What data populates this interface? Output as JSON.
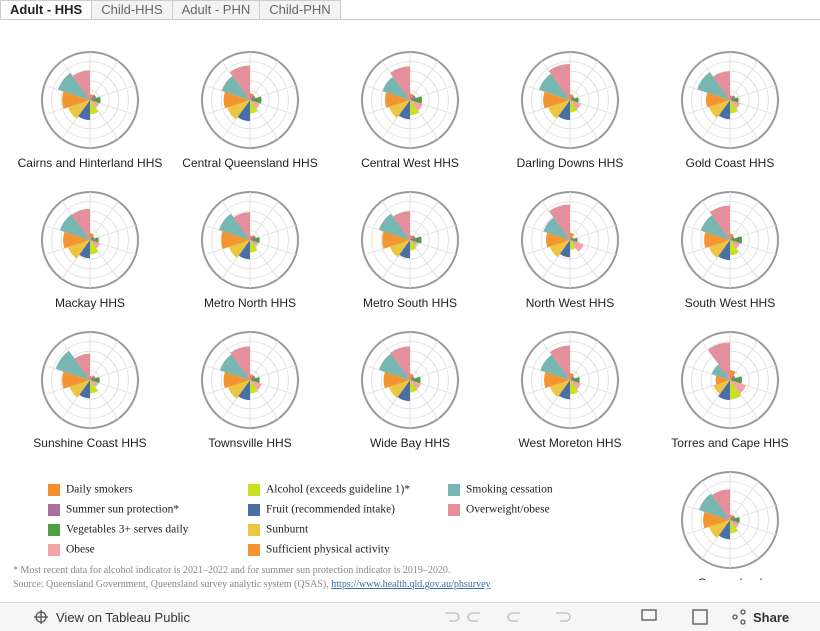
{
  "tabs": [
    "Adult - HHS",
    "Child-HHS",
    "Adult - PHN",
    "Child-PHN"
  ],
  "chart_data": {
    "type": "polar-area",
    "rlim": [
      0,
      100
    ],
    "rticks": [
      20,
      40,
      60,
      80,
      100
    ],
    "series": [
      {
        "name": "Daily smokers",
        "color": "#f28e2b"
      },
      {
        "name": "Summer sun protection*",
        "color": "#a871a0"
      },
      {
        "name": "Vegetables 3+ serves daily",
        "color": "#4f9e46"
      },
      {
        "name": "Obese",
        "color": "#f4a3a8"
      },
      {
        "name": "Alcohol (exceeds guideline 1)*",
        "color": "#c7e020"
      },
      {
        "name": "Fruit (recommended intake)",
        "color": "#4a6fa5"
      },
      {
        "name": "Sunburnt",
        "color": "#eec443"
      },
      {
        "name": "Sufficient physical activity",
        "color": "#f39530"
      },
      {
        "name": "Smoking cessation",
        "color": "#78b6b1"
      },
      {
        "name": "Overweight/obese",
        "color": "#e3909a"
      }
    ],
    "panels": [
      {
        "title": "Cairns and Hinterland HHS",
        "values": [
          12,
          14,
          22,
          20,
          30,
          42,
          48,
          58,
          70,
          62
        ]
      },
      {
        "title": "Central Queensland HHS",
        "values": [
          14,
          12,
          24,
          22,
          28,
          44,
          50,
          55,
          62,
          72
        ]
      },
      {
        "title": "Central West HHS",
        "values": [
          13,
          13,
          25,
          28,
          32,
          40,
          46,
          52,
          60,
          70
        ]
      },
      {
        "title": "Darling Downs HHS",
        "values": [
          12,
          10,
          18,
          24,
          26,
          42,
          48,
          56,
          68,
          75
        ]
      },
      {
        "title": "Gold Coast HHS",
        "values": [
          10,
          12,
          18,
          22,
          28,
          40,
          46,
          50,
          72,
          60
        ]
      },
      {
        "title": "Mackay HHS",
        "values": [
          14,
          10,
          18,
          22,
          30,
          38,
          48,
          56,
          66,
          65
        ]
      },
      {
        "title": "Metro North HHS",
        "values": [
          9,
          13,
          20,
          18,
          26,
          40,
          46,
          60,
          68,
          58
        ]
      },
      {
        "title": "Metro South HHS",
        "values": [
          10,
          12,
          24,
          18,
          22,
          38,
          44,
          58,
          68,
          60
        ]
      },
      {
        "title": "North West HHS",
        "values": [
          15,
          8,
          16,
          30,
          20,
          36,
          44,
          50,
          58,
          74
        ]
      },
      {
        "title": "South West HHS",
        "values": [
          13,
          10,
          25,
          22,
          32,
          42,
          46,
          54,
          64,
          72
        ]
      },
      {
        "title": "Sunshine Coast HHS",
        "values": [
          8,
          12,
          20,
          18,
          28,
          38,
          45,
          58,
          75,
          55
        ]
      },
      {
        "title": "Townsville HHS",
        "values": [
          12,
          12,
          20,
          26,
          28,
          42,
          48,
          55,
          66,
          70
        ]
      },
      {
        "title": "Wide Bay HHS",
        "values": [
          13,
          10,
          22,
          24,
          26,
          44,
          46,
          55,
          68,
          70
        ]
      },
      {
        "title": "West Moreton HHS",
        "values": [
          14,
          10,
          20,
          24,
          30,
          40,
          44,
          54,
          65,
          72
        ]
      },
      {
        "title": "Torres and Cape HHS",
        "values": [
          20,
          12,
          25,
          35,
          40,
          42,
          36,
          30,
          40,
          78
        ]
      },
      {
        "title": "Queensland",
        "values": [
          11,
          12,
          20,
          20,
          28,
          40,
          46,
          56,
          68,
          64
        ]
      }
    ]
  },
  "footnote": "* Most recent data for alcohol indicator is 2021–2022 and for summer sun protection indicator is 2019–2020.",
  "source": {
    "text": "Source: Queensland Government, Queensland survey analytic system (QSAS),",
    "link": "https://www.health.qld.gov.au/phsurvey"
  },
  "toolbar": {
    "view": "View on Tableau Public",
    "share": "Share"
  }
}
